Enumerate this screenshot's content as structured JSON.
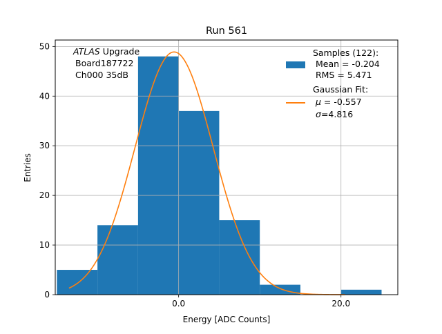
{
  "chart_data": {
    "type": "bar",
    "title": "Run 561",
    "xlabel": "Energy [ADC Counts]",
    "ylabel": "Entries",
    "xlim": [
      -15.2,
      27.0
    ],
    "ylim": [
      0,
      51.3
    ],
    "x_ticks": [
      0,
      20
    ],
    "x_tick_labels": [
      "0.0",
      "20.0"
    ],
    "y_ticks": [
      0,
      10,
      20,
      30,
      40,
      50
    ],
    "y_tick_labels": [
      "0",
      "10",
      "20",
      "30",
      "40",
      "50"
    ],
    "grid": true,
    "annotation": {
      "experiment": "ATLAS",
      "experiment_suffix": " Upgrade",
      "board": "Board187722",
      "channel": "Ch000 35dB"
    },
    "legend": {
      "placement": "top-right",
      "hist_title": "Samples (122):",
      "hist_mean": "Mean = -0.204",
      "hist_rms": "RMS = 5.471",
      "fit_title": "Gaussian Fit:",
      "fit_mu_symbol": "μ",
      "fit_mu_value": " = -0.557",
      "fit_sigma_symbol": "σ",
      "fit_sigma_value": "=4.816"
    },
    "histogram": {
      "name": "Samples (122)",
      "color": "#1f77b4",
      "bin_edges": [
        -15,
        -10,
        -5,
        0,
        5,
        10,
        15,
        20,
        25
      ],
      "counts": [
        5,
        14,
        48,
        37,
        15,
        2,
        0,
        1
      ]
    },
    "fit": {
      "name": "Gaussian Fit",
      "color": "#ff7f0e",
      "mu": -0.557,
      "sigma": 4.816,
      "amplitude": 48.9,
      "x_range": [
        -13.5,
        20.5
      ]
    }
  }
}
